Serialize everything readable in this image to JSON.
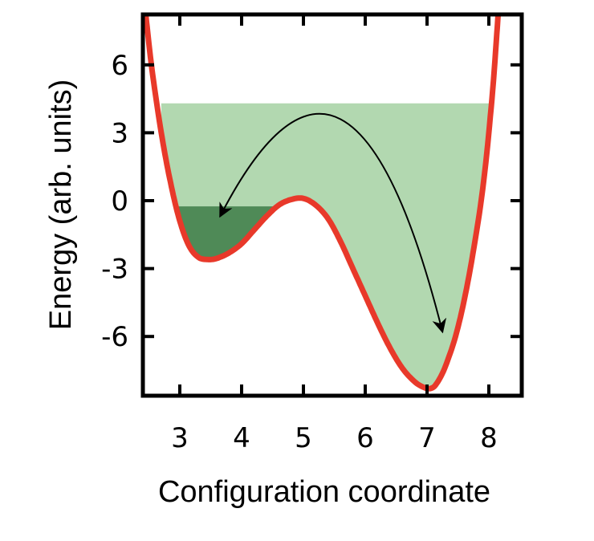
{
  "chart_data": {
    "type": "line",
    "title": "",
    "xlabel": "Configuration coordinate",
    "ylabel": "Energy (arb. units)",
    "xlim": [
      2.4,
      8.5
    ],
    "ylim": [
      -8.5,
      8.0
    ],
    "xticks": [
      3,
      4,
      5,
      6,
      7,
      8
    ],
    "yticks": [
      6,
      3,
      0,
      -3,
      -6
    ],
    "ytick_labels": [
      "6",
      "3",
      "0",
      "-3",
      "-6"
    ],
    "grid": false,
    "series": [
      {
        "color": "#e8392a",
        "x": [
          2.45,
          2.55,
          2.7,
          2.85,
          3.0,
          3.15,
          3.3,
          3.45,
          3.6,
          3.8,
          4.0,
          4.2,
          4.4,
          4.6,
          4.8,
          5.0,
          5.2,
          5.4,
          5.6,
          5.8,
          6.0,
          6.2,
          6.4,
          6.6,
          6.8,
          6.95,
          7.05,
          7.15,
          7.3,
          7.5,
          7.7,
          7.9,
          8.05,
          8.15
        ],
        "y": [
          8.2,
          5.8,
          3.0,
          0.8,
          -0.9,
          -2.0,
          -2.5,
          -2.6,
          -2.55,
          -2.3,
          -1.9,
          -1.3,
          -0.7,
          -0.2,
          0.05,
          0.1,
          -0.2,
          -0.8,
          -1.8,
          -3.0,
          -4.2,
          -5.4,
          -6.5,
          -7.4,
          -8.0,
          -8.25,
          -8.3,
          -8.1,
          -7.3,
          -5.6,
          -3.0,
          0.5,
          4.5,
          8.2
        ]
      }
    ],
    "shaded_regions": [
      {
        "name": "light-fill",
        "color": "#b2d8b0",
        "level": 4.3,
        "x_range": [
          2.7,
          8.05
        ]
      },
      {
        "name": "dark-fill",
        "color": "#4f8a57",
        "level": -0.25,
        "x_range": [
          2.9,
          4.55
        ]
      }
    ],
    "arrow": {
      "from": [
        3.65,
        -0.7
      ],
      "to": [
        7.25,
        -5.8
      ],
      "apex": [
        5.6,
        3.6
      ],
      "direction": "both"
    }
  }
}
